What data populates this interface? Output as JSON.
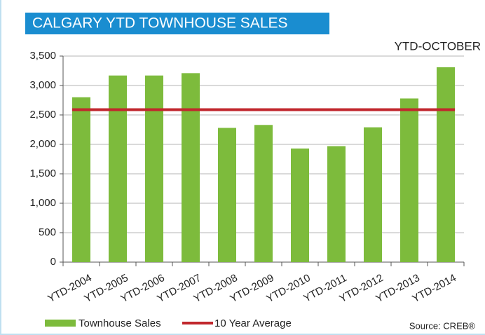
{
  "chart_data": {
    "type": "bar",
    "title": "CALGARY YTD TOWNHOUSE SALES",
    "subtitle": "YTD-OCTOBER",
    "source": "Source: CREB®",
    "categories": [
      "YTD-2004",
      "YTD-2005",
      "YTD-2006",
      "YTD-2007",
      "YTD-2008",
      "YTD-2009",
      "YTD-2010",
      "YTD-2011",
      "YTD-2012",
      "YTD-2013",
      "YTD-2014"
    ],
    "series": [
      {
        "name": "Townhouse Sales",
        "color": "#7dbb3c",
        "values": [
          2800,
          3170,
          3170,
          3210,
          2280,
          2330,
          1930,
          1970,
          2290,
          2780,
          3310
        ]
      }
    ],
    "average": {
      "name": "10 Year Average",
      "color": "#c1272d",
      "value": 2590
    },
    "ylim": [
      0,
      3500
    ],
    "yticks": [
      0,
      {
        "value": 500,
        "label": "500"
      },
      {
        "value": 1000,
        "label": "1,000"
      },
      {
        "value": 1500,
        "label": "1,500"
      },
      {
        "value": 2000,
        "label": "2,000"
      },
      {
        "value": 2500,
        "label": "2,500"
      },
      {
        "value": 3000,
        "label": "3,000"
      },
      {
        "value": 3500,
        "label": "3,500"
      }
    ],
    "grid": true
  }
}
